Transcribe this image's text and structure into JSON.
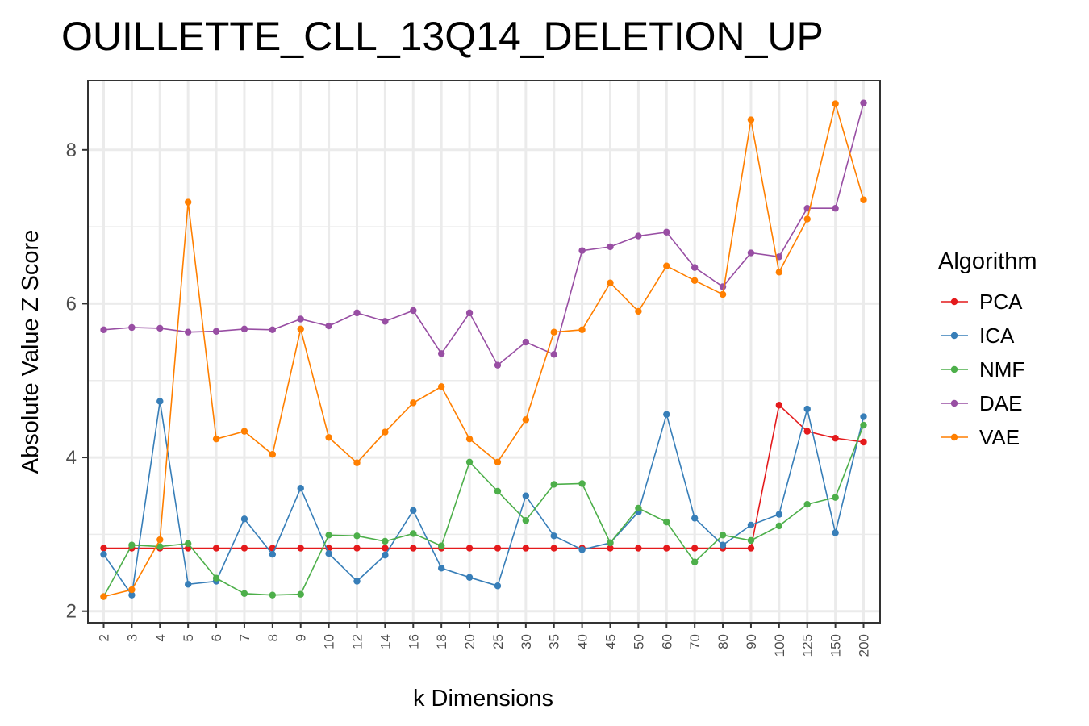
{
  "chart_data": {
    "type": "line",
    "title": "OUILLETTE_CLL_13Q14_DELETION_UP",
    "xlabel": "k Dimensions",
    "ylabel": "Absolute Value Z Score",
    "categories": [
      "2",
      "3",
      "4",
      "5",
      "6",
      "7",
      "8",
      "9",
      "10",
      "12",
      "14",
      "16",
      "18",
      "20",
      "25",
      "30",
      "35",
      "40",
      "45",
      "50",
      "60",
      "70",
      "80",
      "90",
      "100",
      "125",
      "150",
      "200"
    ],
    "yticks": [
      2,
      4,
      6,
      8
    ],
    "ylim": [
      1.85,
      8.9
    ],
    "grid": true,
    "legend": {
      "title": "Algorithm",
      "position": "right"
    },
    "series": [
      {
        "name": "PCA",
        "color": "#e41a1c",
        "values": [
          2.82,
          2.82,
          2.82,
          2.82,
          2.82,
          2.82,
          2.82,
          2.82,
          2.82,
          2.82,
          2.82,
          2.82,
          2.82,
          2.82,
          2.82,
          2.82,
          2.82,
          2.82,
          2.82,
          2.82,
          2.82,
          2.82,
          2.82,
          2.82,
          4.68,
          4.34,
          4.25,
          4.2
        ]
      },
      {
        "name": "ICA",
        "color": "#377eb8",
        "values": [
          2.74,
          2.21,
          4.73,
          2.35,
          2.39,
          3.2,
          2.74,
          3.6,
          2.75,
          2.39,
          2.73,
          3.31,
          2.56,
          2.44,
          2.33,
          3.5,
          2.98,
          2.8,
          2.89,
          3.29,
          4.56,
          3.21,
          2.86,
          3.12,
          3.26,
          4.63,
          3.02,
          4.53
        ]
      },
      {
        "name": "NMF",
        "color": "#4daf4a",
        "values": [
          2.19,
          2.86,
          2.84,
          2.88,
          2.43,
          2.23,
          2.21,
          2.22,
          2.99,
          2.98,
          2.91,
          3.01,
          2.85,
          3.94,
          3.56,
          3.18,
          3.65,
          3.66,
          2.89,
          3.34,
          3.16,
          2.64,
          2.99,
          2.92,
          3.11,
          3.39,
          3.48,
          4.42
        ]
      },
      {
        "name": "DAE",
        "color": "#984ea3",
        "values": [
          5.66,
          5.69,
          5.68,
          5.63,
          5.64,
          5.67,
          5.66,
          5.8,
          5.71,
          5.88,
          5.77,
          5.91,
          5.35,
          5.88,
          5.2,
          5.5,
          5.34,
          6.69,
          6.74,
          6.88,
          6.93,
          6.47,
          6.22,
          6.66,
          6.61,
          7.24,
          7.24,
          8.61
        ]
      },
      {
        "name": "VAE",
        "color": "#ff7f00",
        "values": [
          2.19,
          2.28,
          2.93,
          7.32,
          4.24,
          4.34,
          4.04,
          5.67,
          4.26,
          3.93,
          4.33,
          4.71,
          4.92,
          4.24,
          3.94,
          4.49,
          5.63,
          5.66,
          6.27,
          5.9,
          6.49,
          6.3,
          6.12,
          8.39,
          6.41,
          7.1,
          8.6,
          7.35
        ]
      }
    ]
  }
}
